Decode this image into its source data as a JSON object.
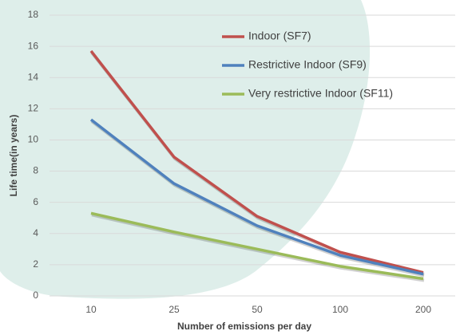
{
  "chart_data": {
    "type": "line",
    "x_label": "Number of emissions per day",
    "y_label": "Life time(in years)",
    "categories": [
      "10",
      "25",
      "50",
      "100",
      "200"
    ],
    "series": [
      {
        "name": "Indoor (SF7)",
        "color": "#c0504d",
        "values": [
          15.7,
          8.9,
          5.1,
          2.8,
          1.5
        ]
      },
      {
        "name": "Restrictive Indoor (SF9)",
        "color": "#4f81bd",
        "values": [
          11.3,
          7.2,
          4.5,
          2.6,
          1.4
        ]
      },
      {
        "name": "Very restrictive Indoor (SF11)",
        "color": "#9bbb59",
        "values": [
          5.3,
          4.1,
          3.0,
          1.9,
          1.1
        ]
      }
    ],
    "ylim": [
      0,
      18
    ],
    "yticks": [
      0,
      2,
      4,
      6,
      8,
      10,
      12,
      14,
      16,
      18
    ],
    "grid": true
  }
}
